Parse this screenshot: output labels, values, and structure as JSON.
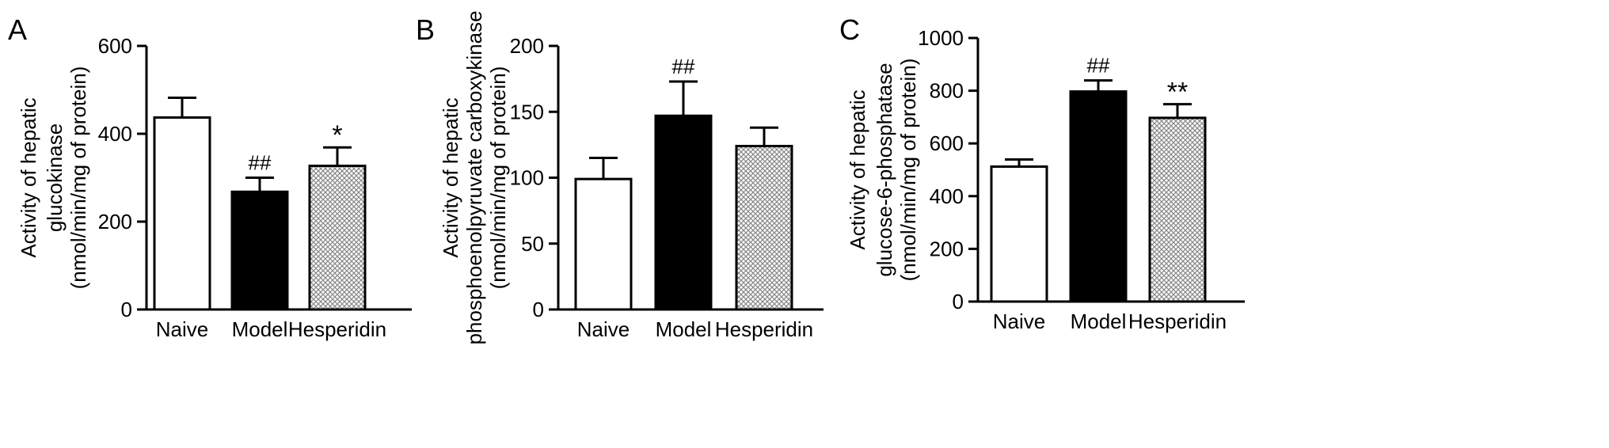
{
  "chart_data": [
    {
      "type": "bar",
      "panel_label": "A",
      "categories": [
        "Naive",
        "Model",
        "Hesperidin"
      ],
      "values": [
        437,
        268,
        327
      ],
      "errors": [
        45,
        32,
        42
      ],
      "annotations": [
        "",
        "##",
        "*"
      ],
      "ylabel_lines": [
        "Activity of hepatic",
        "glucokinase",
        "(nmol/min/mg of protein)"
      ],
      "ylim": [
        0,
        600
      ],
      "yticks": [
        0,
        200,
        400,
        600
      ],
      "fills": [
        "white",
        "black",
        "hatched"
      ]
    },
    {
      "type": "bar",
      "panel_label": "B",
      "categories": [
        "Naive",
        "Model",
        "Hesperidin"
      ],
      "values": [
        99,
        147,
        124
      ],
      "errors": [
        16,
        26,
        14
      ],
      "annotations": [
        "",
        "##",
        ""
      ],
      "ylabel_lines": [
        "Activity of hepatic",
        "phosphoenolpyruvate carboxykinase",
        "(nmol/min/mg of protein)"
      ],
      "ylim": [
        0,
        200
      ],
      "yticks": [
        0,
        50,
        100,
        150,
        200
      ],
      "fills": [
        "white",
        "black",
        "hatched"
      ]
    },
    {
      "type": "bar",
      "panel_label": "C",
      "categories": [
        "Naive",
        "Model",
        "Hesperidin"
      ],
      "values": [
        512,
        797,
        697
      ],
      "errors": [
        27,
        42,
        52
      ],
      "annotations": [
        "",
        "##",
        "**"
      ],
      "ylabel_lines": [
        "Activity of hepatic",
        "glucose-6-phosphatase",
        "(nmol/min/mg of protein)"
      ],
      "ylim": [
        0,
        1000
      ],
      "yticks": [
        0,
        200,
        400,
        600,
        800,
        1000
      ],
      "fills": [
        "white",
        "black",
        "hatched"
      ]
    }
  ]
}
